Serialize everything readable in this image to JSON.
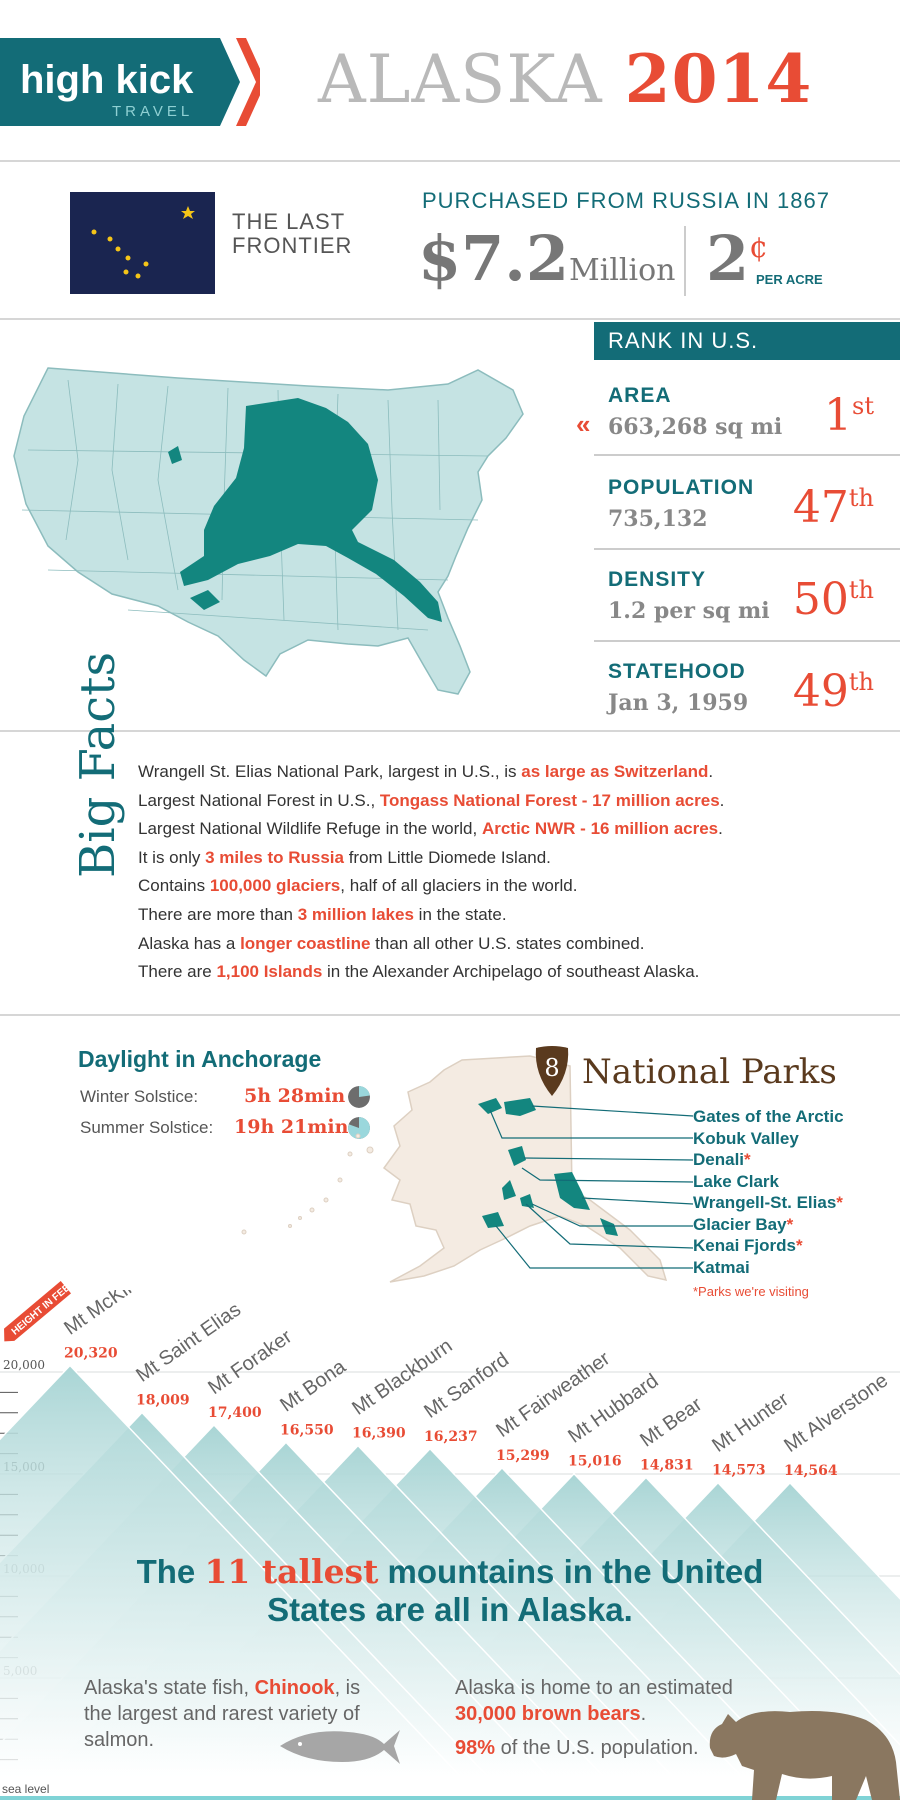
{
  "header": {
    "brand": "high kick",
    "brand_sub": "TRAVEL",
    "title_word": "ALASKA",
    "title_year": "2014"
  },
  "purchase": {
    "nickname": "THE LAST FRONTIER",
    "heading": "PURCHASED FROM RUSSIA IN 1867",
    "price": "$7.2",
    "price_unit": "Million",
    "cents": "2",
    "cents_symbol": "¢",
    "per_acre": "PER ACRE"
  },
  "rank": {
    "heading": "RANK IN U.S.",
    "rows": [
      {
        "label": "AREA",
        "value": "663,268 sq mi",
        "rank": "1",
        "suffix": "st"
      },
      {
        "label": "POPULATION",
        "value": "735,132",
        "rank": "47",
        "suffix": "th"
      },
      {
        "label": "DENSITY",
        "value": "1.2 per sq mi",
        "rank": "50",
        "suffix": "th"
      },
      {
        "label": "STATEHOOD",
        "value": "Jan 3, 1959",
        "rank": "49",
        "suffix": "th"
      }
    ]
  },
  "big_facts": {
    "title": "Big Facts",
    "items": [
      {
        "pre": "Wrangell St. Elias National Park, largest in U.S., is ",
        "hl": "as large as Switzerland",
        "post": "."
      },
      {
        "pre": "Largest National Forest in U.S., ",
        "hl": "Tongass National Forest - 17 million acres",
        "post": "."
      },
      {
        "pre": "Largest National Wildlife Refuge in the world, ",
        "hl": "Arctic NWR - 16 million acres",
        "post": "."
      },
      {
        "pre": "It is only ",
        "hl": "3 miles to Russia",
        "post": " from Little Diomede Island."
      },
      {
        "pre": "Contains ",
        "hl": "100,000 glaciers",
        "post": ", half of all glaciers in the world."
      },
      {
        "pre": "There are more than ",
        "hl": "3 million lakes",
        "post": " in the state."
      },
      {
        "pre": "Alaska has a ",
        "hl": "longer coastline",
        "post": " than all other U.S. states combined."
      },
      {
        "pre": "There are ",
        "hl": "1,100 Islands",
        "post": " in the Alexander Archipelago of southeast Alaska."
      }
    ]
  },
  "daylight": {
    "heading": "Daylight in Anchorage",
    "winter_label": "Winter Solstice:",
    "winter_value": "5h 28min",
    "winter_fraction": 0.228,
    "summer_label": "Summer Solstice:",
    "summer_value": "19h 21min",
    "summer_fraction": 0.806
  },
  "parks": {
    "count": "8",
    "heading": "National Parks",
    "items": [
      {
        "name": "Gates of the Arctic",
        "visiting": ""
      },
      {
        "name": "Kobuk Valley",
        "visiting": ""
      },
      {
        "name": "Denali",
        "visiting": "*"
      },
      {
        "name": "Lake Clark",
        "visiting": ""
      },
      {
        "name": "Wrangell-St. Elias",
        "visiting": "*"
      },
      {
        "name": "Glacier Bay",
        "visiting": "*"
      },
      {
        "name": "Kenai Fjords",
        "visiting": "*"
      },
      {
        "name": "Katmai",
        "visiting": ""
      }
    ],
    "note": "*Parks we're visiting"
  },
  "mountains": {
    "tag": "HEIGHT IN FEET",
    "y_labels": [
      "20,000",
      "15,000",
      "10,000",
      "5,000",
      "sea level"
    ],
    "items": [
      {
        "name": "Mt McKinley",
        "height": "20,320",
        "feet": 20320
      },
      {
        "name": "Mt Saint Elias",
        "height": "18,009",
        "feet": 18009
      },
      {
        "name": "Mt Foraker",
        "height": "17,400",
        "feet": 17400
      },
      {
        "name": "Mt Bona",
        "height": "16,550",
        "feet": 16550
      },
      {
        "name": "Mt Blackburn",
        "height": "16,390",
        "feet": 16390
      },
      {
        "name": "Mt Sanford",
        "height": "16,237",
        "feet": 16237
      },
      {
        "name": "Mt Fairweather",
        "height": "15,299",
        "feet": 15299
      },
      {
        "name": "Mt Hubbard",
        "height": "15,016",
        "feet": 15016
      },
      {
        "name": "Mt Bear",
        "height": "14,831",
        "feet": 14831
      },
      {
        "name": "Mt Hunter",
        "height": "14,573",
        "feet": 14573
      },
      {
        "name": "Mt Alverstone",
        "height": "14,564",
        "feet": 14564
      }
    ],
    "headline_pre": "The ",
    "headline_hl": "11 tallest",
    "headline_post": " mountains in the United States are all in Alaska."
  },
  "fish": {
    "pre": "Alaska's state fish, ",
    "hl": "Chinook",
    "post": ", is the largest and rarest variety of salmon."
  },
  "bears": {
    "line1": "Alaska is home to an estimated",
    "hl": "30,000 brown bears",
    "post1": ".",
    "pct": "98%",
    "line3": " of the U.S. population."
  },
  "colors": {
    "teal": "#136c77",
    "orange": "#e84c35",
    "light_teal": "#c5e3e3",
    "land": "#f4ebe2"
  }
}
